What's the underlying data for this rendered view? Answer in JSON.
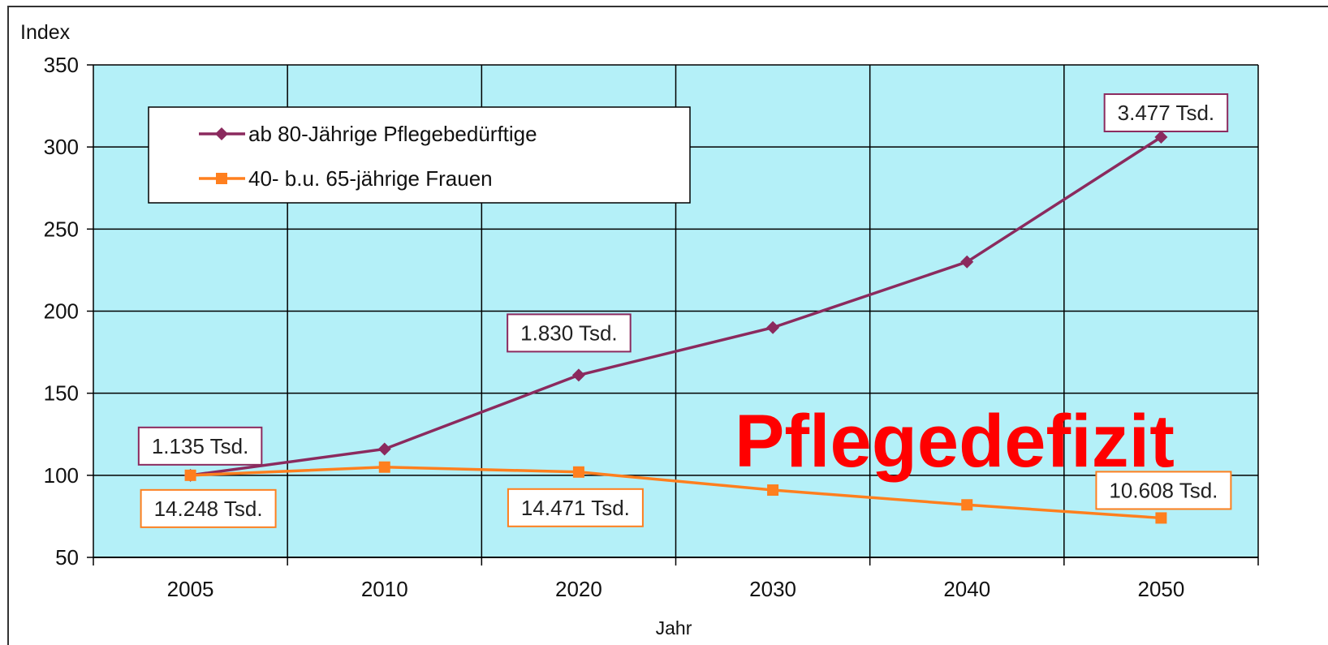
{
  "chart_data": {
    "type": "line",
    "y_label": "Index",
    "x_label": "Jahr",
    "categories": [
      "2005",
      "2010",
      "2020",
      "2030",
      "2040",
      "2050"
    ],
    "ylim": [
      50,
      350
    ],
    "yticks": [
      50,
      100,
      150,
      200,
      250,
      300,
      350
    ],
    "grid": true,
    "legend": "upper left",
    "overlay_text": "Pflegedefizit",
    "series": [
      {
        "name": "ab 80-Jährige Pflegebedürftige",
        "color": "#8b2a5e",
        "marker": "diamond",
        "values": [
          100,
          116,
          161,
          190,
          230,
          306
        ],
        "annotations": [
          {
            "category": "2005",
            "text": "1.135 Tsd."
          },
          {
            "category": "2020",
            "text": "1.830 Tsd."
          },
          {
            "category": "2050",
            "text": "3.477 Tsd."
          }
        ]
      },
      {
        "name": "40- b.u. 65-jährige Frauen",
        "color": "#ff7f1e",
        "marker": "square",
        "values": [
          100,
          105,
          102,
          91,
          82,
          74
        ],
        "annotations": [
          {
            "category": "2005",
            "text": "14.248 Tsd."
          },
          {
            "category": "2020",
            "text": "14.471 Tsd."
          },
          {
            "category": "2050",
            "text": "10.608 Tsd."
          }
        ]
      }
    ]
  }
}
